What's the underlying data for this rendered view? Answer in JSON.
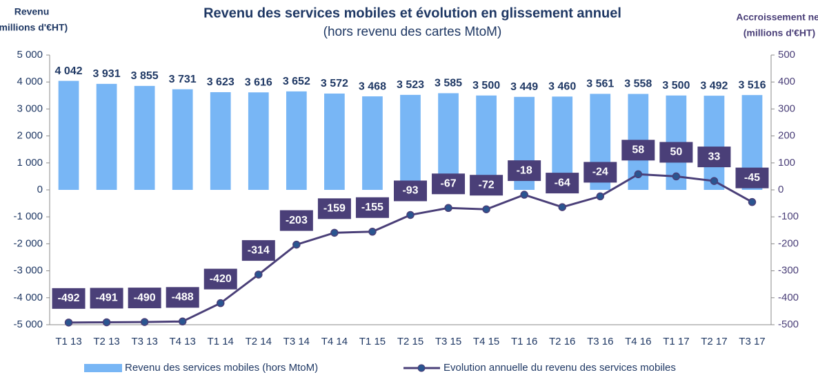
{
  "chart_data": {
    "type": "bar-line",
    "title": "Revenu des services mobiles et évolution en glissement annuel",
    "subtitle": "(hors revenu des cartes MtoM)",
    "y_label": [
      "Revenu",
      "(millions d'€HT)"
    ],
    "y2_label": [
      "Accroissement net",
      "(millions d'€HT)"
    ],
    "categories": [
      "T1 13",
      "T2 13",
      "T3 13",
      "T4 13",
      "T1 14",
      "T2 14",
      "T3 14",
      "T4 14",
      "T1 15",
      "T2 15",
      "T3 15",
      "T4 15",
      "T1 16",
      "T2 16",
      "T3 16",
      "T4 16",
      "T1 17",
      "T2 17",
      "T3 17"
    ],
    "series": [
      {
        "name": "Revenu des services mobiles (hors MtoM)",
        "type": "bar",
        "color": "#78b6f5",
        "values": [
          4042,
          3931,
          3855,
          3731,
          3623,
          3616,
          3652,
          3572,
          3468,
          3523,
          3585,
          3500,
          3449,
          3460,
          3561,
          3558,
          3500,
          3492,
          3516
        ],
        "value_labels": [
          "4 042",
          "3 931",
          "3 855",
          "3 731",
          "3 623",
          "3 616",
          "3 652",
          "3 572",
          "3 468",
          "3 523",
          "3 585",
          "3 500",
          "3 449",
          "3 460",
          "3 561",
          "3 558",
          "3 500",
          "3 492",
          "3 516"
        ]
      },
      {
        "name": "Evolution annuelle du revenu des services mobiles",
        "type": "line",
        "axis": "y2",
        "color": "#4a3f78",
        "marker_color": "#2a5590",
        "values": [
          -492,
          -491,
          -490,
          -488,
          -420,
          -314,
          -203,
          -159,
          -155,
          -93,
          -67,
          -72,
          -18,
          -64,
          -24,
          58,
          50,
          33,
          -45
        ]
      }
    ],
    "ylim": [
      -5000,
      5000
    ],
    "yticks": [
      {
        "value": -5000,
        "label": "-5 000"
      },
      {
        "value": -4000,
        "label": "-4 000"
      },
      {
        "value": -3000,
        "label": "-3 000"
      },
      {
        "value": -2000,
        "label": "-2 000"
      },
      {
        "value": -1000,
        "label": "-1 000"
      },
      0,
      {
        "value": 1000,
        "label": "1 000"
      },
      {
        "value": 2000,
        "label": "2 000"
      },
      {
        "value": 3000,
        "label": "3 000"
      },
      {
        "value": 4000,
        "label": "4 000"
      },
      {
        "value": 5000,
        "label": "5 000"
      }
    ],
    "y2lim": [
      -500,
      500
    ],
    "y2ticks": [
      -500,
      -400,
      -300,
      -200,
      -100,
      0,
      100,
      200,
      300,
      400,
      500
    ],
    "grid": false,
    "legend": "bottom"
  }
}
